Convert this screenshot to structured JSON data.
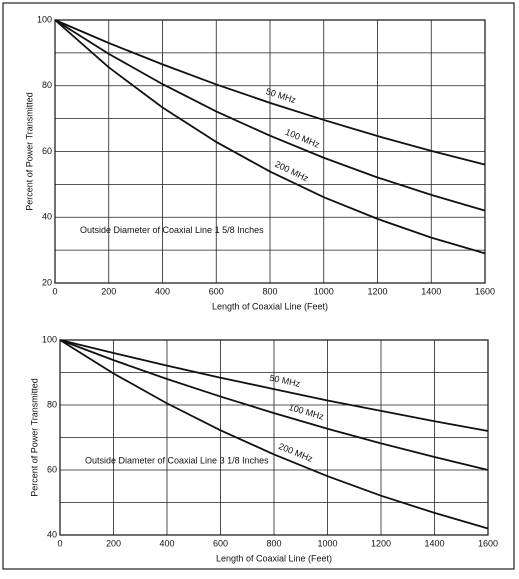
{
  "chart_data": [
    {
      "type": "line",
      "x_label": "Length of Coaxial Line (Feet)",
      "y_label": "Percent of Power Transmitted",
      "annotation": "Outside Diameter of Coaxial Line 1 5/8 Inches",
      "x": [
        0,
        200,
        400,
        600,
        800,
        1000,
        1200,
        1400,
        1600
      ],
      "series": [
        {
          "name": "50 MHz",
          "color": "#111111",
          "values": [
            100,
            93.0,
            86.5,
            80.4,
            74.8,
            69.6,
            64.7,
            60.2,
            56
          ]
        },
        {
          "name": "100 MHz",
          "color": "#111111",
          "values": [
            100,
            89.7,
            80.5,
            72.2,
            64.8,
            58.1,
            52.1,
            46.8,
            42
          ]
        },
        {
          "name": "200 MHz",
          "color": "#111111",
          "values": [
            100,
            85.6,
            73.4,
            62.9,
            53.9,
            46.1,
            39.5,
            33.8,
            29
          ]
        }
      ],
      "xlim": [
        0,
        1600
      ],
      "xticks": [
        0,
        200,
        400,
        600,
        800,
        1000,
        1200,
        1400,
        1600
      ],
      "ylim": [
        20,
        100
      ],
      "yticks": [
        20,
        40,
        60,
        80,
        100
      ],
      "minor_yticks": [
        30,
        50,
        70,
        90
      ],
      "grid": true
    },
    {
      "type": "line",
      "x_label": "Length of Coaxial Line (Feet)",
      "y_label": "Percent of Power Transmitted",
      "annotation": "Outside Diameter of Coaxial Line 3 1/8 Inches",
      "x": [
        0,
        200,
        400,
        600,
        800,
        1000,
        1200,
        1400,
        1600
      ],
      "series": [
        {
          "name": "50 MHz",
          "color": "#111111",
          "values": [
            100,
            96.0,
            92.1,
            88.4,
            84.9,
            81.4,
            78.2,
            75.0,
            72
          ]
        },
        {
          "name": "100 MHz",
          "color": "#111111",
          "values": [
            100,
            93.8,
            88.0,
            82.6,
            77.5,
            72.7,
            68.2,
            64.0,
            60
          ]
        },
        {
          "name": "200 MHz",
          "color": "#111111",
          "values": [
            100,
            89.7,
            80.5,
            72.2,
            64.8,
            58.1,
            52.1,
            46.8,
            42
          ]
        }
      ],
      "xlim": [
        0,
        1600
      ],
      "xticks": [
        0,
        200,
        400,
        600,
        800,
        1000,
        1200,
        1400,
        1600
      ],
      "ylim": [
        40,
        100
      ],
      "yticks": [
        40,
        60,
        80,
        100
      ],
      "minor_yticks": [
        50,
        70,
        90
      ],
      "grid": true
    }
  ]
}
